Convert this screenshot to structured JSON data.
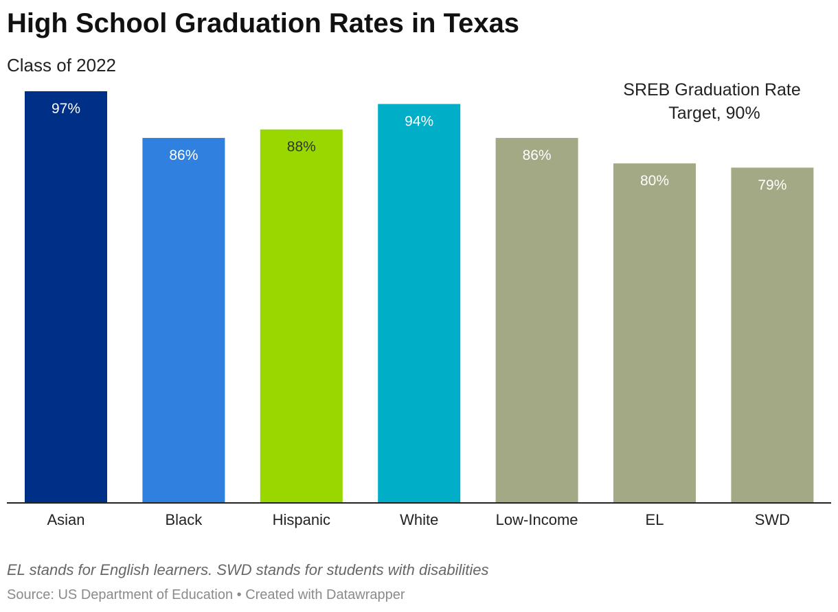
{
  "header": {
    "title": "High School Graduation Rates in Texas",
    "subtitle": "Class of 2022"
  },
  "chart_data": {
    "type": "bar",
    "categories": [
      "Asian",
      "Black",
      "Hispanic",
      "White",
      "Low-Income",
      "EL",
      "SWD"
    ],
    "values": [
      97,
      86,
      88,
      94,
      86,
      80,
      79
    ],
    "value_labels": [
      "97%",
      "86%",
      "88%",
      "94%",
      "86%",
      "80%",
      "79%"
    ],
    "colors": [
      "#002f87",
      "#3080e0",
      "#98d800",
      "#00aec8",
      "#a2a984",
      "#a2a984",
      "#a2a984"
    ],
    "ylim": [
      0,
      97
    ],
    "grid": false,
    "annotation": {
      "lines": [
        "SREB Graduation Rate",
        "Target, 90%"
      ]
    }
  },
  "footer": {
    "note": "EL stands for English learners. SWD stands for students with disabilities",
    "source": "Source: US Department of Education",
    "separator": " • ",
    "credit": "Created with Datawrapper"
  }
}
